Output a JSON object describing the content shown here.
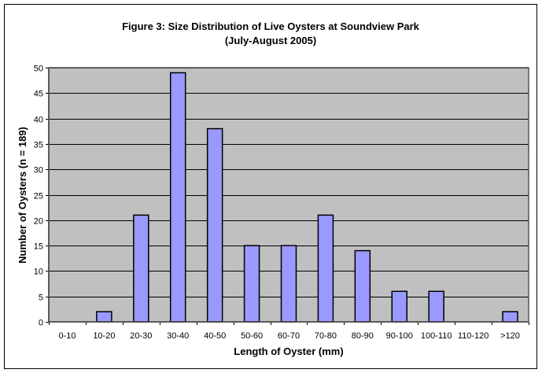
{
  "chart_data": {
    "type": "bar",
    "title": "Figure 3: Size Distribution of Live Oysters at Soundview Park",
    "subtitle": "(July-August 2005)",
    "xlabel": "Length of Oyster (mm)",
    "ylabel": "Number of Oysters (n = 189)",
    "categories": [
      "0-10",
      "10-20",
      "20-30",
      "30-40",
      "40-50",
      "50-60",
      "60-70",
      "70-80",
      "80-90",
      "90-100",
      "100-110",
      "110-120",
      ">120"
    ],
    "values": [
      0,
      2,
      21,
      49,
      38,
      15,
      15,
      21,
      14,
      6,
      6,
      0,
      2
    ],
    "ylim": [
      0,
      50
    ],
    "yticks": [
      0,
      5,
      10,
      15,
      20,
      25,
      30,
      35,
      40,
      45,
      50
    ],
    "grid": true,
    "legend": "none",
    "colors": {
      "bar": "#9999FF",
      "plot_background": "#C0C0C0",
      "gridline": "#000000"
    }
  }
}
